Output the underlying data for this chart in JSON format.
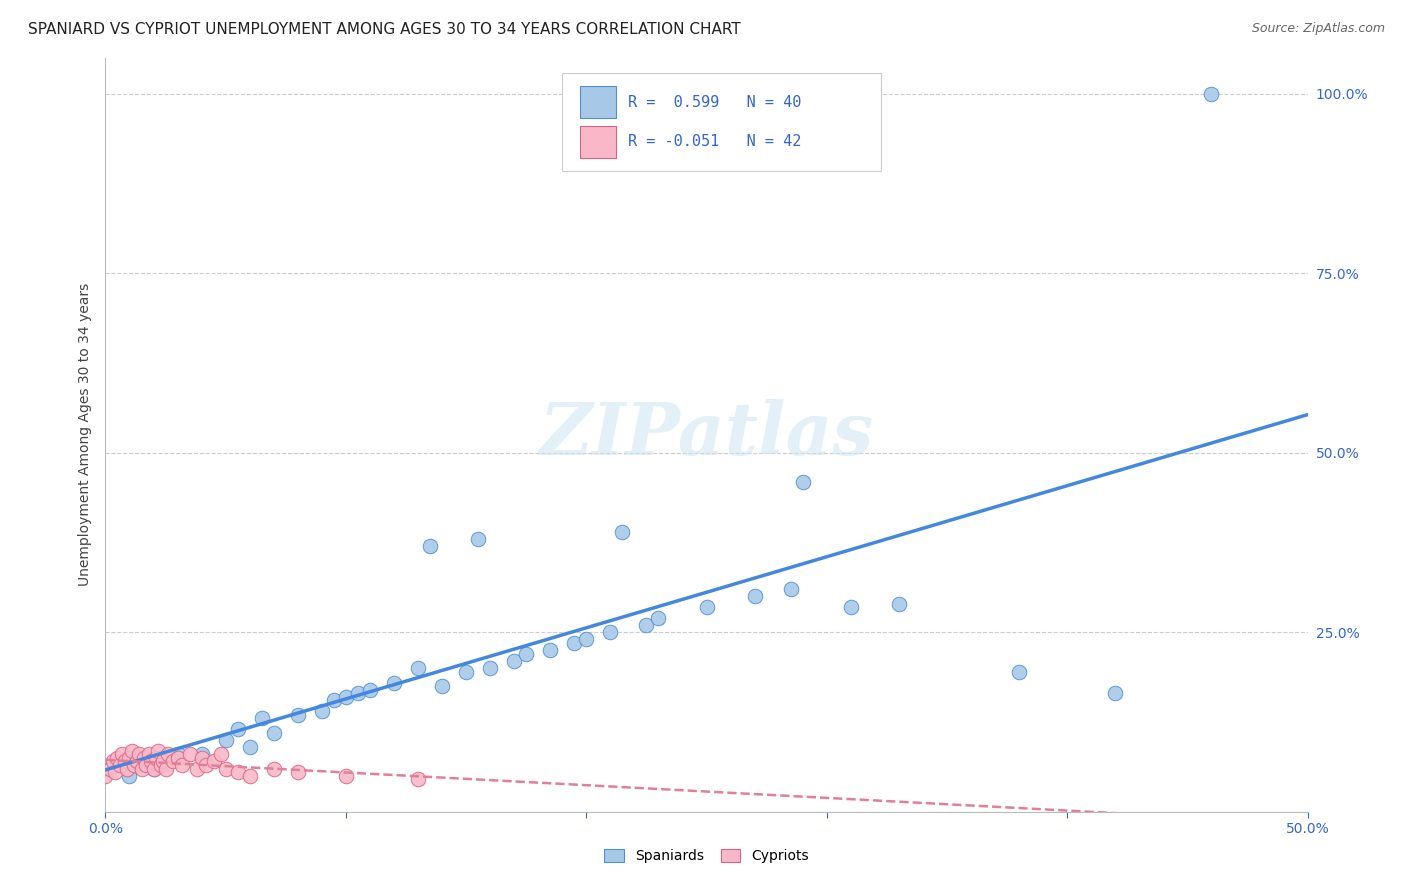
{
  "title": "SPANIARD VS CYPRIOT UNEMPLOYMENT AMONG AGES 30 TO 34 YEARS CORRELATION CHART",
  "source": "Source: ZipAtlas.com",
  "ylabel": "Unemployment Among Ages 30 to 34 years",
  "xlim": [
    0.0,
    0.5
  ],
  "ylim": [
    0.0,
    1.05
  ],
  "grid_color": "#cccccc",
  "spaniard_color": "#a8c8e8",
  "cypriot_color": "#f8b8c8",
  "spaniard_edge_color": "#5090d0",
  "cypriot_edge_color": "#e06080",
  "spaniard_line_color": "#4488dd",
  "cypriot_line_color": "#e08098",
  "title_fontsize": 11,
  "axis_fontsize": 10,
  "tick_fontsize": 10,
  "spaniard_x": [
    0.01,
    0.02,
    0.03,
    0.04,
    0.05,
    0.055,
    0.06,
    0.065,
    0.07,
    0.08,
    0.09,
    0.095,
    0.1,
    0.105,
    0.11,
    0.12,
    0.13,
    0.135,
    0.14,
    0.15,
    0.155,
    0.16,
    0.17,
    0.175,
    0.185,
    0.195,
    0.2,
    0.21,
    0.215,
    0.225,
    0.23,
    0.25,
    0.27,
    0.285,
    0.29,
    0.31,
    0.33,
    0.38,
    0.42,
    0.46
  ],
  "spaniard_y": [
    0.05,
    0.06,
    0.08,
    0.08,
    0.1,
    0.115,
    0.09,
    0.13,
    0.11,
    0.135,
    0.14,
    0.155,
    0.16,
    0.165,
    0.17,
    0.18,
    0.2,
    0.37,
    0.175,
    0.195,
    0.38,
    0.2,
    0.21,
    0.22,
    0.225,
    0.235,
    0.24,
    0.25,
    0.39,
    0.26,
    0.27,
    0.285,
    0.3,
    0.31,
    0.46,
    0.285,
    0.29,
    0.195,
    0.165,
    1.0
  ],
  "cypriot_x": [
    0.0,
    0.002,
    0.003,
    0.004,
    0.005,
    0.006,
    0.007,
    0.008,
    0.009,
    0.01,
    0.011,
    0.012,
    0.013,
    0.014,
    0.015,
    0.016,
    0.017,
    0.018,
    0.019,
    0.02,
    0.021,
    0.022,
    0.023,
    0.024,
    0.025,
    0.026,
    0.028,
    0.03,
    0.032,
    0.035,
    0.038,
    0.04,
    0.042,
    0.045,
    0.048,
    0.05,
    0.055,
    0.06,
    0.07,
    0.08,
    0.1,
    0.13
  ],
  "cypriot_y": [
    0.05,
    0.06,
    0.07,
    0.055,
    0.075,
    0.065,
    0.08,
    0.07,
    0.06,
    0.075,
    0.085,
    0.065,
    0.07,
    0.08,
    0.06,
    0.075,
    0.065,
    0.08,
    0.07,
    0.06,
    0.075,
    0.085,
    0.065,
    0.07,
    0.06,
    0.08,
    0.07,
    0.075,
    0.065,
    0.08,
    0.06,
    0.075,
    0.065,
    0.07,
    0.08,
    0.06,
    0.055,
    0.05,
    0.06,
    0.055,
    0.05,
    0.045
  ]
}
